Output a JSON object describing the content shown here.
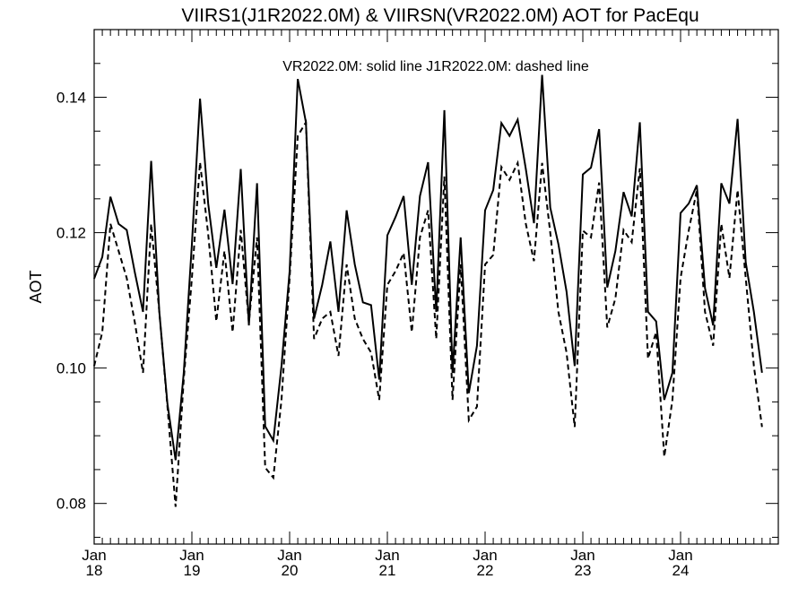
{
  "chart_data": {
    "type": "line",
    "title": "VIIRS1(J1R2022.0M) & VIIRSN(VR2022.0M)  AOT for PacEqu",
    "annotation": "VR2022.0M: solid line   J1R2022.0M: dashed line",
    "xlabel": "",
    "ylabel": "AOT",
    "ylim": [
      0.074,
      0.15
    ],
    "yticks": [
      "0.08",
      "0.10",
      "0.12",
      "0.14"
    ],
    "xticks": [
      {
        "month": "Jan",
        "year": "18"
      },
      {
        "month": "Jan",
        "year": "19"
      },
      {
        "month": "Jan",
        "year": "20"
      },
      {
        "month": "Jan",
        "year": "21"
      },
      {
        "month": "Jan",
        "year": "22"
      },
      {
        "month": "Jan",
        "year": "23"
      },
      {
        "month": "Jan",
        "year": "24"
      }
    ],
    "x_start": "2018-01",
    "x_end": "2024-12",
    "grid": false,
    "series": [
      {
        "name": "VR2022.0M",
        "style": "solid",
        "color": "#000000",
        "values": [
          0.1132,
          0.1164,
          0.1253,
          0.1213,
          0.1204,
          0.1141,
          0.1083,
          0.1306,
          0.1083,
          0.0947,
          0.0864,
          0.0993,
          0.1183,
          0.1398,
          0.1243,
          0.1148,
          0.1234,
          0.1124,
          0.1294,
          0.1063,
          0.1273,
          0.0914,
          0.0893,
          0.1003,
          0.1143,
          0.1427,
          0.1363,
          0.1073,
          0.1123,
          0.1187,
          0.1083,
          0.1233,
          0.1153,
          0.1097,
          0.1093,
          0.0983,
          0.1196,
          0.1223,
          0.1254,
          0.1123,
          0.1254,
          0.1304,
          0.1083,
          0.1381,
          0.0993,
          0.1193,
          0.0963,
          0.1033,
          0.1233,
          0.1263,
          0.1362,
          0.1343,
          0.1367,
          0.1294,
          0.1214,
          0.1433,
          0.1237,
          0.1183,
          0.1113,
          0.1003,
          0.1286,
          0.1296,
          0.1353,
          0.1119,
          0.1173,
          0.126,
          0.1224,
          0.1363,
          0.1083,
          0.1069,
          0.0953,
          0.0993,
          0.1229,
          0.1243,
          0.127,
          0.1118,
          0.1063,
          0.1273,
          0.1243,
          0.1368,
          0.1156,
          0.1083,
          0.0993
        ]
      },
      {
        "name": "J1R2022.0M",
        "style": "dashed",
        "color": "#000000",
        "values": [
          0.1003,
          0.1053,
          0.1213,
          0.1173,
          0.1133,
          0.1067,
          0.0993,
          0.1213,
          0.1083,
          0.0943,
          0.0795,
          0.0983,
          0.1133,
          0.1304,
          0.1198,
          0.1069,
          0.1173,
          0.1053,
          0.1204,
          0.1067,
          0.1193,
          0.0853,
          0.0838,
          0.0953,
          0.1133,
          0.1343,
          0.1363,
          0.1043,
          0.1073,
          0.1083,
          0.1018,
          0.1153,
          0.1073,
          0.1043,
          0.1023,
          0.0953,
          0.1123,
          0.1143,
          0.117,
          0.1053,
          0.1193,
          0.1233,
          0.1043,
          0.1283,
          0.0953,
          0.1153,
          0.0923,
          0.0943,
          0.1153,
          0.1167,
          0.1297,
          0.1278,
          0.1303,
          0.1213,
          0.1158,
          0.1303,
          0.12,
          0.1083,
          0.1023,
          0.0913,
          0.1203,
          0.1193,
          0.1274,
          0.106,
          0.1103,
          0.1204,
          0.1186,
          0.1295,
          0.1014,
          0.1053,
          0.0869,
          0.0953,
          0.1133,
          0.1203,
          0.1263,
          0.1083,
          0.1033,
          0.1213,
          0.1133,
          0.1263,
          0.1133,
          0.1003,
          0.0913
        ]
      }
    ]
  }
}
